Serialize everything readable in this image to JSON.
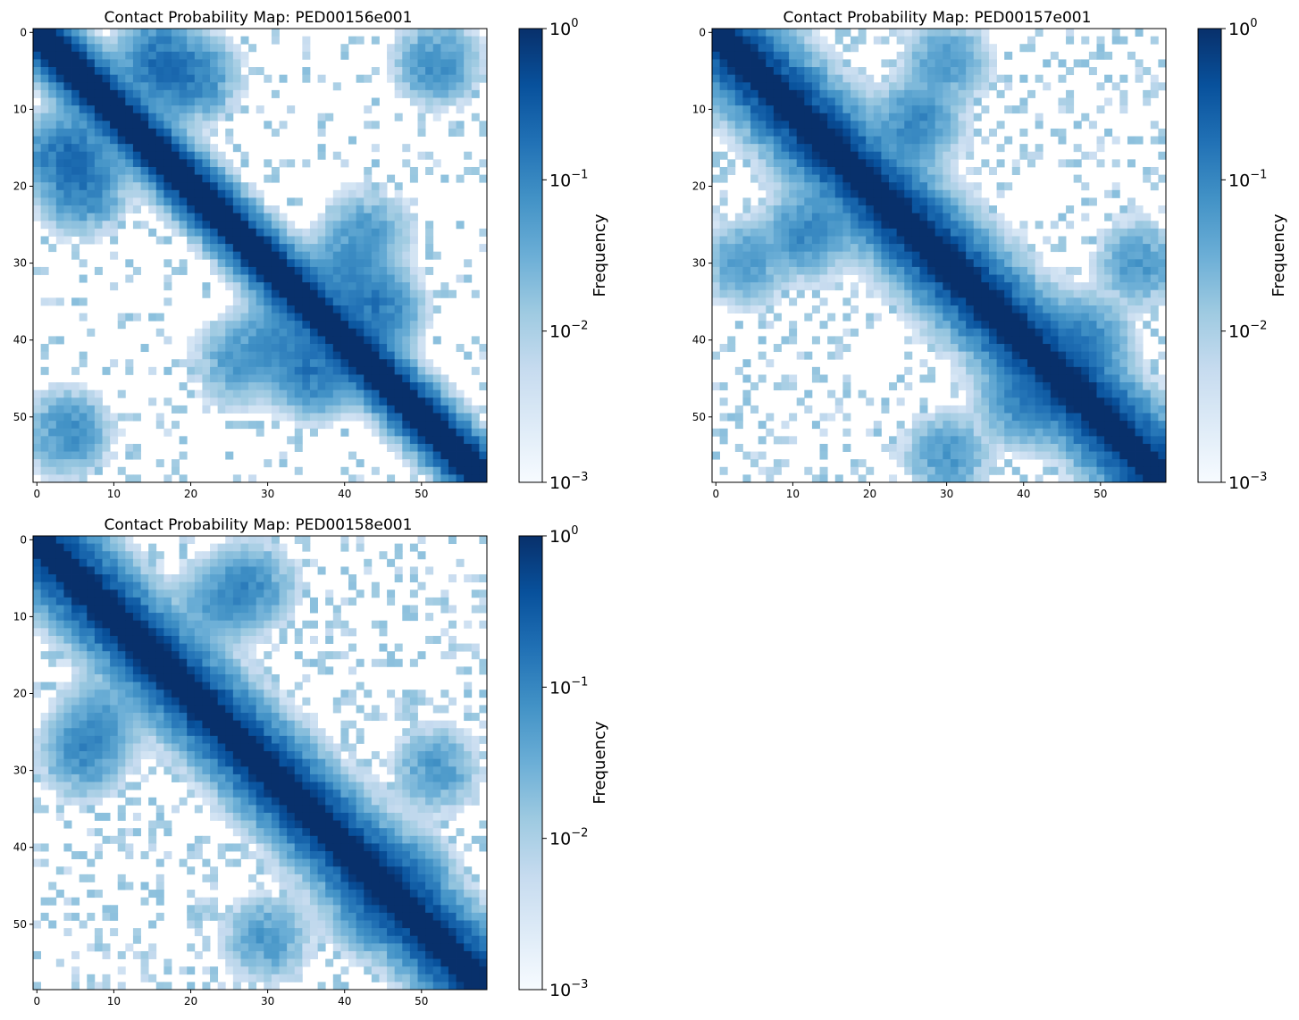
{
  "colors": {
    "cmap": [
      "#f7fbff",
      "#deebf7",
      "#c6dbef",
      "#9ecae1",
      "#6baed6",
      "#4292c6",
      "#2171b5",
      "#08519c",
      "#08306b"
    ]
  },
  "chart_data": [
    {
      "type": "heatmap",
      "title": "Contact Probability Map: PED00156e001",
      "n": 59,
      "xticks": [
        0,
        10,
        20,
        30,
        40,
        50
      ],
      "yticks": [
        0,
        10,
        20,
        30,
        40,
        50
      ],
      "color_scale": "log",
      "clim": [
        0.001,
        1
      ],
      "colorbar_label": "Frequency",
      "colorbar_ticks": [
        {
          "base": "10",
          "exp": "0"
        },
        {
          "base": "10",
          "exp": "−1"
        },
        {
          "base": "10",
          "exp": "−2"
        },
        {
          "base": "10",
          "exp": "−3"
        }
      ],
      "seed": 156,
      "diagonal_band_width": 2.6,
      "background_density": 0.14,
      "features": [
        {
          "i": 16,
          "j": 4,
          "strength": 0.09
        },
        {
          "i": 4,
          "j": 16,
          "strength": 0.09
        },
        {
          "i": 6,
          "j": 19,
          "strength": 0.06
        },
        {
          "i": 21,
          "j": 6,
          "strength": 0.06
        },
        {
          "i": 44,
          "j": 36,
          "strength": 0.08
        },
        {
          "i": 36,
          "j": 44,
          "strength": 0.08
        },
        {
          "i": 40,
          "j": 31,
          "strength": 0.04
        },
        {
          "i": 31,
          "j": 40,
          "strength": 0.04
        },
        {
          "i": 52,
          "j": 4,
          "strength": 0.04
        },
        {
          "i": 4,
          "j": 52,
          "strength": 0.04
        },
        {
          "i": 26,
          "j": 43,
          "strength": 0.03
        },
        {
          "i": 43,
          "j": 26,
          "strength": 0.03
        }
      ]
    },
    {
      "type": "heatmap",
      "title": "Contact Probability Map: PED00157e001",
      "n": 59,
      "xticks": [
        0,
        10,
        20,
        30,
        40,
        50
      ],
      "yticks": [
        0,
        10,
        20,
        30,
        40,
        50
      ],
      "color_scale": "log",
      "clim": [
        0.001,
        1
      ],
      "colorbar_label": "Frequency",
      "colorbar_ticks": [
        {
          "base": "10",
          "exp": "0"
        },
        {
          "base": "10",
          "exp": "−1"
        },
        {
          "base": "10",
          "exp": "−2"
        },
        {
          "base": "10",
          "exp": "−3"
        }
      ],
      "seed": 157,
      "diagonal_band_width": 4.5,
      "background_density": 0.26,
      "features": [
        {
          "i": 26,
          "j": 12,
          "strength": 0.05
        },
        {
          "i": 12,
          "j": 26,
          "strength": 0.05
        },
        {
          "i": 30,
          "j": 4,
          "strength": 0.03
        },
        {
          "i": 4,
          "j": 30,
          "strength": 0.03
        },
        {
          "i": 48,
          "j": 40,
          "strength": 0.05
        },
        {
          "i": 40,
          "j": 48,
          "strength": 0.05
        },
        {
          "i": 55,
          "j": 30,
          "strength": 0.03
        },
        {
          "i": 30,
          "j": 55,
          "strength": 0.03
        }
      ]
    },
    {
      "type": "heatmap",
      "title": "Contact Probability Map: PED00158e001",
      "n": 59,
      "xticks": [
        0,
        10,
        20,
        30,
        40,
        50
      ],
      "yticks": [
        0,
        10,
        20,
        30,
        40,
        50
      ],
      "color_scale": "log",
      "clim": [
        0.001,
        1
      ],
      "colorbar_label": "Frequency",
      "colorbar_ticks": [
        {
          "base": "10",
          "exp": "0"
        },
        {
          "base": "10",
          "exp": "−1"
        },
        {
          "base": "10",
          "exp": "−2"
        },
        {
          "base": "10",
          "exp": "−3"
        }
      ],
      "seed": 158,
      "diagonal_band_width": 4.3,
      "background_density": 0.27,
      "features": [
        {
          "i": 28,
          "j": 6,
          "strength": 0.04
        },
        {
          "i": 6,
          "j": 28,
          "strength": 0.04
        },
        {
          "i": 48,
          "j": 44,
          "strength": 0.05
        },
        {
          "i": 44,
          "j": 48,
          "strength": 0.05
        },
        {
          "i": 52,
          "j": 30,
          "strength": 0.03
        },
        {
          "i": 30,
          "j": 52,
          "strength": 0.03
        },
        {
          "i": 8,
          "j": 24,
          "strength": 0.03
        },
        {
          "i": 24,
          "j": 8,
          "strength": 0.03
        }
      ]
    }
  ]
}
